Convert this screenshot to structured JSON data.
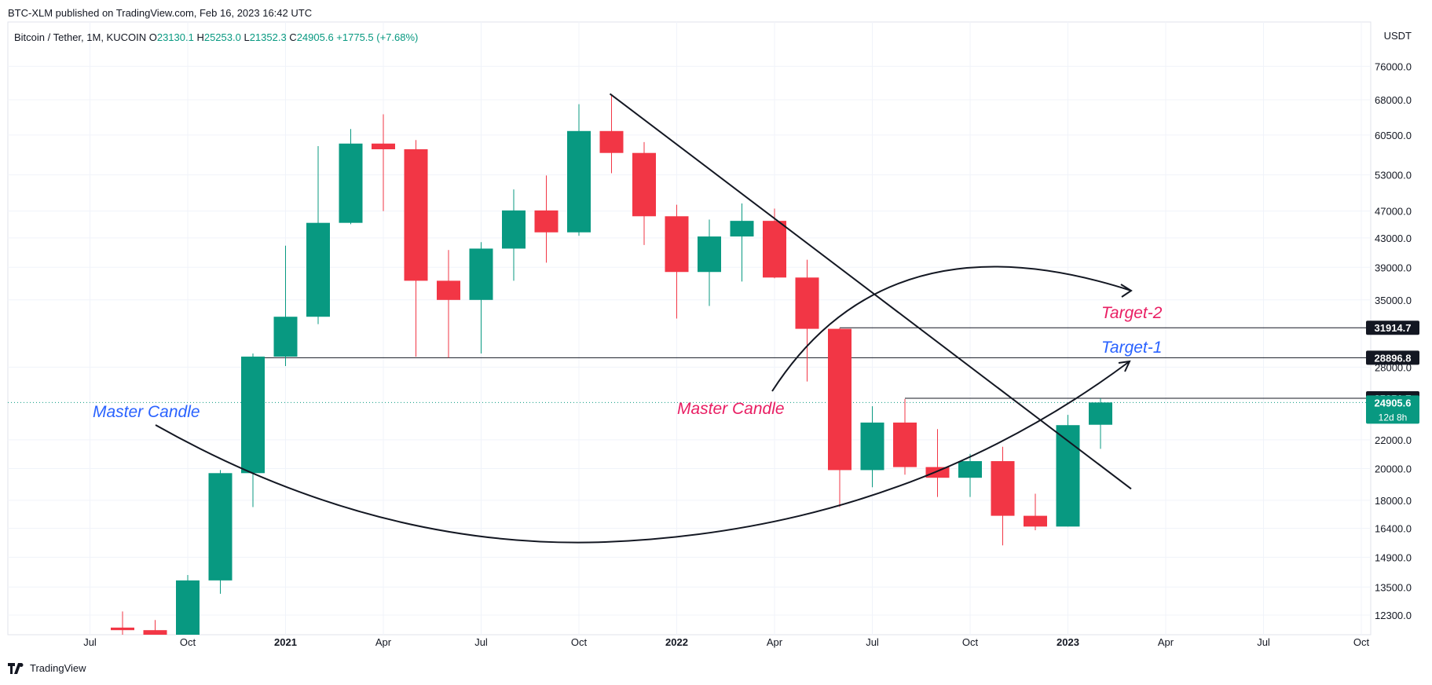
{
  "publisher": "BTC-XLM published on TradingView.com, Feb 16, 2023 16:42 UTC",
  "footer_brand": "TradingView",
  "colors": {
    "up": "#089981",
    "down": "#f23645",
    "grid": "#f0f3fa",
    "axis_text": "#131722",
    "label_bg_dark": "#131722",
    "annotation_blue": "#2962ff",
    "annotation_red": "#e91e63"
  },
  "chart_data": {
    "type": "candlestick",
    "symbol_line": {
      "name": "Bitcoin / Tether, 1M, KUCOIN",
      "o_label": "O",
      "o": "23130.1",
      "h_label": "H",
      "h": "25253.0",
      "l_label": "L",
      "l": "21352.3",
      "c_label": "C",
      "c": "24905.6",
      "change": "+1775.5 (+7.68%)"
    },
    "y_axis": {
      "currency": "USDT",
      "scale": "log",
      "range": [
        11500,
        85000
      ],
      "ticks": [
        "76000.0",
        "68000.0",
        "60500.0",
        "53000.0",
        "47000.0",
        "43000.0",
        "39000.0",
        "35000.0",
        "28000.0",
        "22000.0",
        "20000.0",
        "18000.0",
        "16400.0",
        "14900.0",
        "13500.0",
        "12300.0"
      ]
    },
    "x_axis": {
      "ticks": [
        {
          "label": "Jul",
          "date": "2020-07",
          "bold": false
        },
        {
          "label": "Oct",
          "date": "2020-10",
          "bold": false
        },
        {
          "label": "2021",
          "date": "2021-01",
          "bold": true
        },
        {
          "label": "Apr",
          "date": "2021-04",
          "bold": false
        },
        {
          "label": "Jul",
          "date": "2021-07",
          "bold": false
        },
        {
          "label": "Oct",
          "date": "2021-10",
          "bold": false
        },
        {
          "label": "2022",
          "date": "2022-01",
          "bold": true
        },
        {
          "label": "Apr",
          "date": "2022-04",
          "bold": false
        },
        {
          "label": "Jul",
          "date": "2022-07",
          "bold": false
        },
        {
          "label": "Oct",
          "date": "2022-10",
          "bold": false
        },
        {
          "label": "2023",
          "date": "2023-01",
          "bold": true
        },
        {
          "label": "Apr",
          "date": "2023-04",
          "bold": false
        },
        {
          "label": "Jul",
          "date": "2023-07",
          "bold": false
        },
        {
          "label": "Oct",
          "date": "2023-10",
          "bold": false
        }
      ]
    },
    "candles": [
      {
        "date": "2020-08",
        "o": 11800,
        "h": 12450,
        "l": 11300,
        "c": 11700
      },
      {
        "date": "2020-09",
        "o": 11700,
        "h": 12100,
        "l": 10000,
        "c": 10750
      },
      {
        "date": "2020-10",
        "o": 10750,
        "h": 14050,
        "l": 10500,
        "c": 13800
      },
      {
        "date": "2020-11",
        "o": 13800,
        "h": 19900,
        "l": 13200,
        "c": 19700
      },
      {
        "date": "2020-12",
        "o": 19700,
        "h": 29300,
        "l": 17600,
        "c": 29000
      },
      {
        "date": "2021-01",
        "o": 29000,
        "h": 41900,
        "l": 28100,
        "c": 33100
      },
      {
        "date": "2021-02",
        "o": 33100,
        "h": 58300,
        "l": 32300,
        "c": 45200
      },
      {
        "date": "2021-03",
        "o": 45200,
        "h": 61700,
        "l": 45000,
        "c": 58800
      },
      {
        "date": "2021-04",
        "o": 58800,
        "h": 64800,
        "l": 47000,
        "c": 57700
      },
      {
        "date": "2021-05",
        "o": 57700,
        "h": 59500,
        "l": 29000,
        "c": 37300
      },
      {
        "date": "2021-06",
        "o": 37300,
        "h": 41300,
        "l": 28900,
        "c": 35000
      },
      {
        "date": "2021-07",
        "o": 35000,
        "h": 42400,
        "l": 29300,
        "c": 41500
      },
      {
        "date": "2021-08",
        "o": 41500,
        "h": 50500,
        "l": 37300,
        "c": 47100
      },
      {
        "date": "2021-09",
        "o": 47100,
        "h": 52900,
        "l": 39600,
        "c": 43800
      },
      {
        "date": "2021-10",
        "o": 43800,
        "h": 67000,
        "l": 43300,
        "c": 61300
      },
      {
        "date": "2021-11",
        "o": 61300,
        "h": 69000,
        "l": 53300,
        "c": 57000
      },
      {
        "date": "2021-12",
        "o": 57000,
        "h": 59100,
        "l": 42000,
        "c": 46200
      },
      {
        "date": "2022-01",
        "o": 46200,
        "h": 48000,
        "l": 32900,
        "c": 38400
      },
      {
        "date": "2022-02",
        "o": 38400,
        "h": 45700,
        "l": 34300,
        "c": 43200
      },
      {
        "date": "2022-03",
        "o": 43200,
        "h": 48200,
        "l": 37200,
        "c": 45500
      },
      {
        "date": "2022-04",
        "o": 45500,
        "h": 47400,
        "l": 37600,
        "c": 37700
      },
      {
        "date": "2022-05",
        "o": 37700,
        "h": 40000,
        "l": 26700,
        "c": 31800
      },
      {
        "date": "2022-06",
        "o": 31800,
        "h": 31900,
        "l": 17600,
        "c": 19900
      },
      {
        "date": "2022-07",
        "o": 19900,
        "h": 24600,
        "l": 18800,
        "c": 23300
      },
      {
        "date": "2022-08",
        "o": 23300,
        "h": 25200,
        "l": 19600,
        "c": 20100
      },
      {
        "date": "2022-09",
        "o": 20100,
        "h": 22800,
        "l": 18200,
        "c": 19400
      },
      {
        "date": "2022-10",
        "o": 19400,
        "h": 21000,
        "l": 18200,
        "c": 20500
      },
      {
        "date": "2022-11",
        "o": 20500,
        "h": 21500,
        "l": 15500,
        "c": 17100
      },
      {
        "date": "2022-12",
        "o": 17100,
        "h": 18400,
        "l": 16300,
        "c": 16500
      },
      {
        "date": "2023-01",
        "o": 16500,
        "h": 23900,
        "l": 16500,
        "c": 23100
      },
      {
        "date": "2023-02",
        "o": 23130.1,
        "h": 25253.0,
        "l": 21352.3,
        "c": 24905.6
      }
    ],
    "price_labels": [
      {
        "value": 31914.7,
        "text": "31914.7",
        "style": "dark"
      },
      {
        "value": 28896.8,
        "text": "28896.8",
        "style": "dark"
      },
      {
        "value": 25251.7,
        "text": "25251.7",
        "style": "dark"
      },
      {
        "value": 24905.6,
        "text": "24905.6",
        "style": "up",
        "countdown": "12d 8h"
      }
    ],
    "horizontal_lines": [
      {
        "value": 31914.7,
        "from": "2022-06"
      },
      {
        "value": 28896.8,
        "from": "2020-12"
      },
      {
        "value": 25251.7,
        "from": "2022-08"
      }
    ],
    "current_price_line": 24905.6,
    "annotations": [
      {
        "text": "Master Candle",
        "color": "annotation_blue"
      },
      {
        "text": "Master Candle",
        "color": "annotation_red"
      },
      {
        "text": "Target-2",
        "color": "annotation_red"
      },
      {
        "text": "Target-1",
        "color": "annotation_blue"
      }
    ]
  }
}
